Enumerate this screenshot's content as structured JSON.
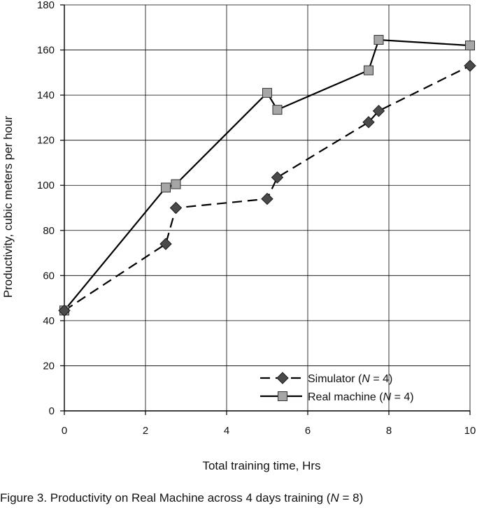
{
  "chart_data": {
    "type": "line",
    "xlabel": "Total training time, Hrs",
    "ylabel": "Productivity, cubic meters per hour",
    "xlim": [
      0,
      10
    ],
    "ylim": [
      0,
      180
    ],
    "x_ticks": [
      0,
      2,
      4,
      6,
      8,
      10
    ],
    "y_ticks": [
      0,
      20,
      40,
      60,
      80,
      100,
      120,
      140,
      160,
      180
    ],
    "grid": true,
    "legend_position": "bottom-right",
    "series": [
      {
        "name_pre": "Simulator (",
        "name_var": "N",
        "name_post": " = 4)",
        "marker": "diamond",
        "line_style": "dashed",
        "marker_color": "#4a4a4a",
        "points": [
          {
            "x": 0,
            "y": 44.5
          },
          {
            "x": 2.5,
            "y": 74
          },
          {
            "x": 2.75,
            "y": 90
          },
          {
            "x": 5,
            "y": 94
          },
          {
            "x": 5.25,
            "y": 103.5
          },
          {
            "x": 7.5,
            "y": 128
          },
          {
            "x": 7.75,
            "y": 133
          },
          {
            "x": 10,
            "y": 153
          }
        ]
      },
      {
        "name_pre": "Real machine (",
        "name_var": "N",
        "name_post": " = 4)",
        "marker": "square",
        "line_style": "solid",
        "marker_color": "#a6a6a6",
        "points": [
          {
            "x": 0,
            "y": 44.5
          },
          {
            "x": 2.5,
            "y": 99
          },
          {
            "x": 2.75,
            "y": 100.5
          },
          {
            "x": 5,
            "y": 141
          },
          {
            "x": 5.25,
            "y": 133.5
          },
          {
            "x": 7.5,
            "y": 151
          },
          {
            "x": 7.75,
            "y": 164.5
          },
          {
            "x": 10,
            "y": 162
          }
        ]
      }
    ]
  },
  "caption": {
    "pre": "Figure 3. Productivity on Real Machine across 4 days training (",
    "var": "N",
    "post": " = 8)"
  }
}
